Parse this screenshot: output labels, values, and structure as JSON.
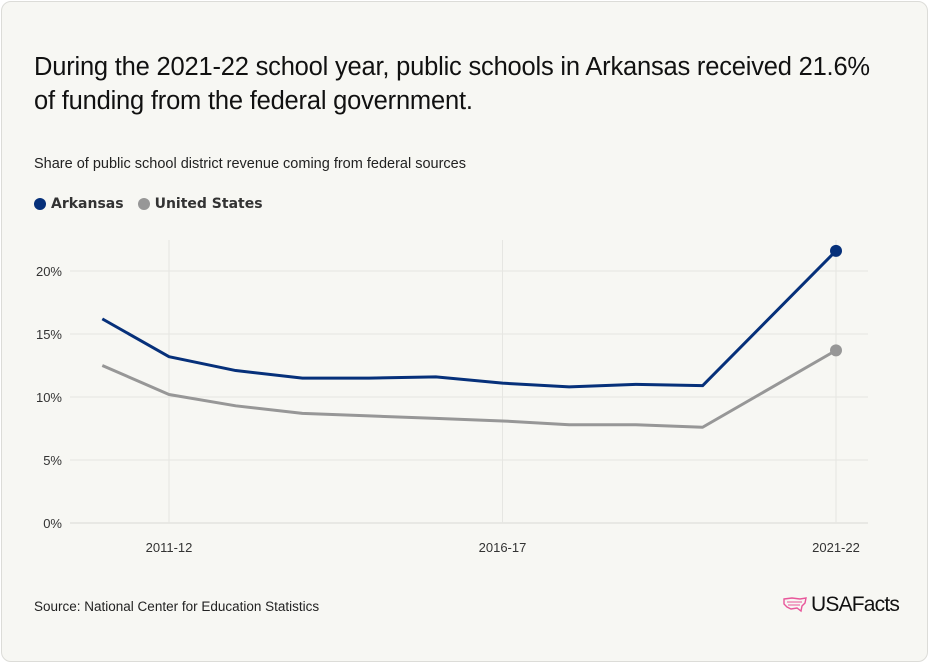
{
  "title": "During the 2021-22 school year, public schools in Arkansas received 21.6% of funding from the federal government.",
  "subtitle": "Share of public school district revenue coming from federal sources",
  "source": "Source: National Center for Education Statistics",
  "logo_text": "USAFacts",
  "colors": {
    "arkansas": "#06307a",
    "united_states": "#979797",
    "accent_logo": "#e8569a"
  },
  "chart_data": {
    "type": "line",
    "x": [
      "2010-11",
      "2011-12",
      "2012-13",
      "2013-14",
      "2014-15",
      "2015-16",
      "2016-17",
      "2017-18",
      "2018-19",
      "2019-20",
      "2021-22"
    ],
    "x_start_years": [
      2010,
      2011,
      2012,
      2013,
      2014,
      2015,
      2016,
      2017,
      2018,
      2019,
      2021
    ],
    "x_ticks": [
      "2011-12",
      "2016-17",
      "2021-22"
    ],
    "series": [
      {
        "name": "Arkansas",
        "values": [
          16.2,
          13.2,
          12.1,
          11.5,
          11.5,
          11.6,
          11.1,
          10.8,
          11.0,
          10.9,
          21.6
        ]
      },
      {
        "name": "United States",
        "values": [
          12.5,
          10.2,
          9.3,
          8.7,
          8.5,
          8.3,
          8.1,
          7.8,
          7.8,
          7.6,
          13.7
        ]
      }
    ],
    "y_ticks": [
      "0%",
      "5%",
      "10%",
      "15%",
      "20%"
    ],
    "ylim": [
      0,
      22
    ],
    "grid": true,
    "legend": "top-left",
    "last_point_marker": true
  }
}
